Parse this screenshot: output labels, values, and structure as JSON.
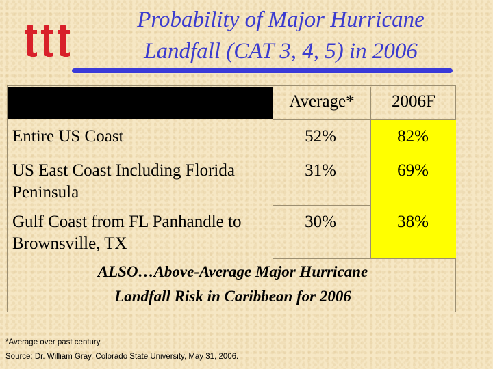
{
  "title_line1": "Probability of Major Hurricane",
  "title_line2": "Landfall (CAT 3, 4, 5) in 2006",
  "logo_icon": "ttt-logo",
  "colors": {
    "title": "#3b3bcf",
    "rule": "#3a3ad8",
    "highlight": "#ffff00",
    "logo": "#d8202a"
  },
  "table": {
    "headers": [
      "Average*",
      "2006F"
    ],
    "rows": [
      {
        "label": "Entire US Coast",
        "average": "52%",
        "forecast": "82%"
      },
      {
        "label": "US East Coast Including Florida Peninsula",
        "average": "31%",
        "forecast": "69%"
      },
      {
        "label": "Gulf Coast from FL Panhandle to Brownsville, TX",
        "average": "30%",
        "forecast": "38%"
      }
    ]
  },
  "note_line1": "ALSO…Above-Average Major Hurricane",
  "note_line2": "Landfall Risk in Caribbean for 2006",
  "footnote": "*Average over past century.",
  "source": "Source: Dr. William Gray, Colorado State University, May 31, 2006."
}
